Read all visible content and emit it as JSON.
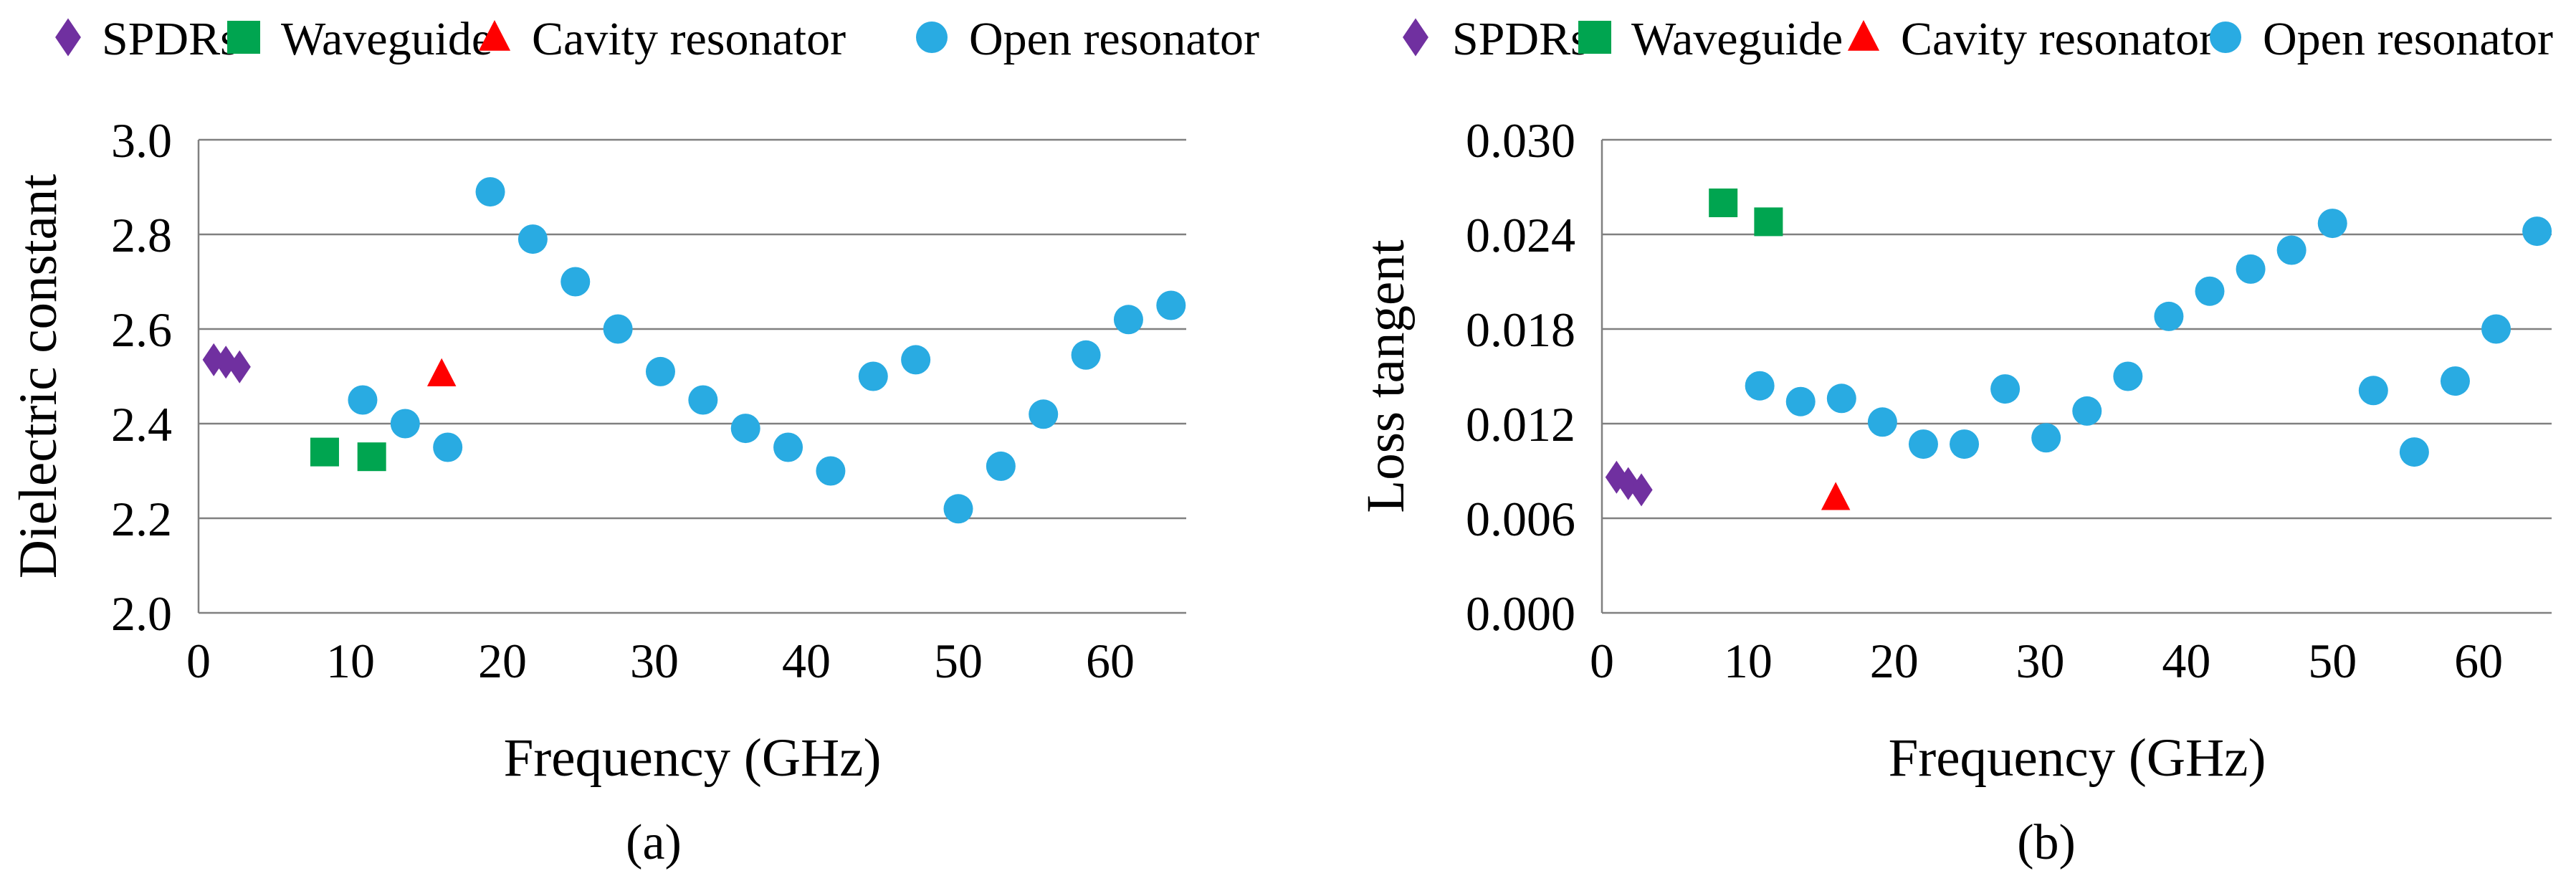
{
  "figure": {
    "background": "#FFFFFF",
    "grid_color": "#808080",
    "axis_color": "#808080",
    "text_color": "#000000",
    "marker_colors": {
      "spdrs": "#7030A0",
      "waveguide": "#00A550",
      "cavity_resonator": "#FF0000",
      "open_resonator": "#29ABE2"
    }
  },
  "chart_data": [
    {
      "id": "a",
      "type": "scatter",
      "caption": "(a)",
      "xlabel": "Frequency (GHz)",
      "ylabel": "Dielectric constant",
      "xlim": [
        0,
        65
      ],
      "ylim": [
        2.0,
        3.0
      ],
      "xticks": [
        0,
        10,
        20,
        30,
        40,
        50,
        60
      ],
      "ytick_labels": [
        "3.0",
        "2.8",
        "2.6",
        "2.4",
        "2.2",
        "2.0"
      ],
      "grid": true,
      "legend_position": "top",
      "series": [
        {
          "name": "SPDRs",
          "marker": "diamond",
          "color": "#7030A0",
          "points": [
            [
              1.0,
              2.535
            ],
            [
              1.8,
              2.53
            ],
            [
              2.7,
              2.52
            ]
          ]
        },
        {
          "name": "Waveguide",
          "marker": "square",
          "color": "#00A550",
          "points": [
            [
              8.3,
              2.34
            ],
            [
              11.4,
              2.33
            ]
          ]
        },
        {
          "name": "Cavity resonator",
          "marker": "triangle",
          "color": "#FF0000",
          "points": [
            [
              16,
              2.505
            ]
          ]
        },
        {
          "name": "Open resonator",
          "marker": "circle",
          "color": "#29ABE2",
          "points": [
            [
              10.8,
              2.45
            ],
            [
              13.6,
              2.4
            ],
            [
              16.4,
              2.35
            ],
            [
              19.2,
              2.89
            ],
            [
              22,
              2.79
            ],
            [
              24.8,
              2.7
            ],
            [
              27.6,
              2.6
            ],
            [
              30.4,
              2.51
            ],
            [
              33.2,
              2.45
            ],
            [
              36,
              2.39
            ],
            [
              38.8,
              2.35
            ],
            [
              41.6,
              2.3
            ],
            [
              44.4,
              2.5
            ],
            [
              47.2,
              2.535
            ],
            [
              50,
              2.22
            ],
            [
              52.8,
              2.31
            ],
            [
              55.6,
              2.42
            ],
            [
              58.4,
              2.545
            ],
            [
              61.2,
              2.62
            ],
            [
              64,
              2.65
            ]
          ]
        }
      ]
    },
    {
      "id": "b",
      "type": "scatter",
      "caption": "(b)",
      "xlabel": "Frequency (GHz)",
      "ylabel": "Loss tangent",
      "xlim": [
        0,
        65
      ],
      "ylim": [
        0.0,
        0.03
      ],
      "xticks": [
        0,
        10,
        20,
        30,
        40,
        50,
        60
      ],
      "ytick_labels": [
        "0.030",
        "0.024",
        "0.018",
        "0.012",
        "0.006",
        "0.000"
      ],
      "grid": true,
      "legend_position": "top",
      "series": [
        {
          "name": "SPDRs",
          "marker": "diamond",
          "color": "#7030A0",
          "points": [
            [
              1.0,
              0.0086
            ],
            [
              1.8,
              0.0082
            ],
            [
              2.7,
              0.0078
            ]
          ]
        },
        {
          "name": "Waveguide",
          "marker": "square",
          "color": "#00A550",
          "points": [
            [
              8.3,
              0.026
            ],
            [
              11.4,
              0.0248
            ]
          ]
        },
        {
          "name": "Cavity resonator",
          "marker": "triangle",
          "color": "#FF0000",
          "points": [
            [
              16,
              0.0073
            ]
          ]
        },
        {
          "name": "Open resonator",
          "marker": "circle",
          "color": "#29ABE2",
          "points": [
            [
              10.8,
              0.0144
            ],
            [
              13.6,
              0.0134
            ],
            [
              16.4,
              0.0136
            ],
            [
              19.2,
              0.0121
            ],
            [
              22,
              0.0107
            ],
            [
              24.8,
              0.0107
            ],
            [
              27.6,
              0.0142
            ],
            [
              30.4,
              0.0111
            ],
            [
              33.2,
              0.0128
            ],
            [
              36,
              0.015
            ],
            [
              38.8,
              0.0188
            ],
            [
              41.6,
              0.0204
            ],
            [
              44.4,
              0.0218
            ],
            [
              47.2,
              0.023
            ],
            [
              50,
              0.0247
            ],
            [
              52.8,
              0.0141
            ],
            [
              55.6,
              0.0102
            ],
            [
              58.4,
              0.0147
            ],
            [
              61.2,
              0.018
            ],
            [
              64,
              0.0242
            ]
          ]
        }
      ]
    }
  ]
}
